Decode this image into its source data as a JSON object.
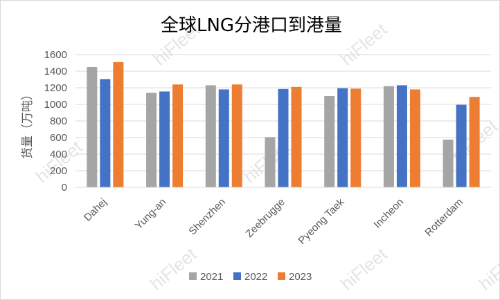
{
  "watermark": "hiFleet",
  "chart_data": {
    "type": "bar",
    "title": "全球LNG分港口到港量",
    "ylabel": "货量（万吨）",
    "xlabel": "",
    "ylim": [
      0,
      1600
    ],
    "yticks": [
      0,
      200,
      400,
      600,
      800,
      1000,
      1200,
      1400,
      1600
    ],
    "grid": true,
    "legend_position": "bottom",
    "categories": [
      "Dahej",
      "Yung-an",
      "Shenzhen",
      "Zeebrugge",
      "Pyeong Taek",
      "Incheon",
      "Rotterdam"
    ],
    "series": [
      {
        "name": "2021",
        "color": "#a5a5a5",
        "values": [
          1450,
          1140,
          1230,
          605,
          1100,
          1220,
          575
        ]
      },
      {
        "name": "2022",
        "color": "#4472c4",
        "values": [
          1305,
          1155,
          1180,
          1185,
          1195,
          1230,
          995
        ]
      },
      {
        "name": "2023",
        "color": "#ed7d31",
        "values": [
          1510,
          1240,
          1240,
          1210,
          1190,
          1180,
          1090
        ]
      }
    ]
  }
}
